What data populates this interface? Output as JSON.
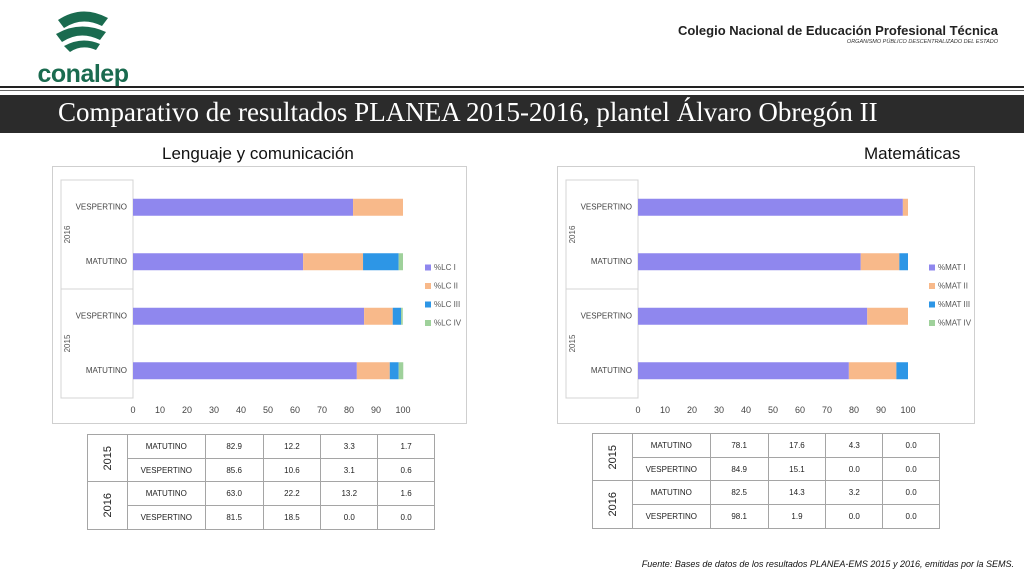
{
  "header": {
    "logo_text": "conalep",
    "institution_name": "Colegio Nacional de Educación Profesional Técnica",
    "institution_subtitle": "ORGANISMO PÚBLICO DESCENTRALIZADO DEL ESTADO",
    "title": "Comparativo de resultados PLANEA 2015-2016, plantel  Álvaro Obregón II"
  },
  "colors": {
    "level1": "#8f87ee",
    "level2": "#f8b98a",
    "level3": "#2d96e6",
    "level4": "#9fd19b",
    "title_bar": "#2b2b2b",
    "brand": "#1a6b4f"
  },
  "chart_data": [
    {
      "type": "bar",
      "orientation": "horizontal",
      "stacked": true,
      "title": "Lenguaje y comunicación",
      "groups": [
        "2016",
        "2016",
        "2015",
        "2015"
      ],
      "categories": [
        "VESPERTINO",
        "MATUTINO",
        "VESPERTINO",
        "MATUTINO"
      ],
      "series": [
        {
          "name": "%LC I",
          "values": [
            81.5,
            63.0,
            85.6,
            82.9
          ]
        },
        {
          "name": "%LC II",
          "values": [
            18.5,
            22.2,
            10.6,
            12.2
          ]
        },
        {
          "name": "%LC III",
          "values": [
            0.0,
            13.2,
            3.1,
            3.3
          ]
        },
        {
          "name": "%LC IV",
          "values": [
            0.0,
            1.6,
            0.6,
            1.7
          ]
        }
      ],
      "xlim": [
        0,
        100
      ],
      "x_ticks": [
        "0",
        "10",
        "20",
        "30",
        "40",
        "50",
        "60",
        "70",
        "80",
        "90",
        "100"
      ],
      "legend_position": "right",
      "grid": false
    },
    {
      "type": "bar",
      "orientation": "horizontal",
      "stacked": true,
      "title": "Matemáticas",
      "groups": [
        "2016",
        "2016",
        "2015",
        "2015"
      ],
      "categories": [
        "VESPERTINO",
        "MATUTINO",
        "VESPERTINO",
        "MATUTINO"
      ],
      "series": [
        {
          "name": "%MAT I",
          "values": [
            98.1,
            82.5,
            84.9,
            78.1
          ]
        },
        {
          "name": "%MAT II",
          "values": [
            1.9,
            14.3,
            15.1,
            17.6
          ]
        },
        {
          "name": "%MAT III",
          "values": [
            0.0,
            3.2,
            0.0,
            4.3
          ]
        },
        {
          "name": "%MAT IV",
          "values": [
            0.0,
            0.0,
            0.0,
            0.0
          ]
        }
      ],
      "xlim": [
        0,
        100
      ],
      "x_ticks": [
        "0",
        "10",
        "20",
        "30",
        "40",
        "50",
        "60",
        "70",
        "80",
        "90",
        "100"
      ],
      "legend_position": "right",
      "grid": false
    },
    {
      "type": "table",
      "title": "Lenguaje y comunicación",
      "rows": [
        {
          "year": "2015",
          "shift": "MATUTINO",
          "values": [
            "82.9",
            "12.2",
            "3.3",
            "1.7"
          ]
        },
        {
          "year": "2015",
          "shift": "VESPERTINO",
          "values": [
            "85.6",
            "10.6",
            "3.1",
            "0.6"
          ]
        },
        {
          "year": "2016",
          "shift": "MATUTINO",
          "values": [
            "63.0",
            "22.2",
            "13.2",
            "1.6"
          ]
        },
        {
          "year": "2016",
          "shift": "VESPERTINO",
          "values": [
            "81.5",
            "18.5",
            "0.0",
            "0.0"
          ]
        }
      ]
    },
    {
      "type": "table",
      "title": "Matemáticas",
      "rows": [
        {
          "year": "2015",
          "shift": "MATUTINO",
          "values": [
            "78.1",
            "17.6",
            "4.3",
            "0.0"
          ]
        },
        {
          "year": "2015",
          "shift": "VESPERTINO",
          "values": [
            "84.9",
            "15.1",
            "0.0",
            "0.0"
          ]
        },
        {
          "year": "2016",
          "shift": "MATUTINO",
          "values": [
            "82.5",
            "14.3",
            "3.2",
            "0.0"
          ]
        },
        {
          "year": "2016",
          "shift": "VESPERTINO",
          "values": [
            "98.1",
            "1.9",
            "0.0",
            "0.0"
          ]
        }
      ]
    }
  ],
  "tables": {
    "lc": {
      "y2015": "2015",
      "y2016": "2016",
      "r0": {
        "shift": "MATUTINO",
        "v": [
          "82.9",
          "12.2",
          "3.3",
          "1.7"
        ]
      },
      "r1": {
        "shift": "VESPERTINO",
        "v": [
          "85.6",
          "10.6",
          "3.1",
          "0.6"
        ]
      },
      "r2": {
        "shift": "MATUTINO",
        "v": [
          "63.0",
          "22.2",
          "13.2",
          "1.6"
        ]
      },
      "r3": {
        "shift": "VESPERTINO",
        "v": [
          "81.5",
          "18.5",
          "0.0",
          "0.0"
        ]
      }
    },
    "mat": {
      "y2015": "2015",
      "y2016": "2016",
      "r0": {
        "shift": "MATUTINO",
        "v": [
          "78.1",
          "17.6",
          "4.3",
          "0.0"
        ]
      },
      "r1": {
        "shift": "VESPERTINO",
        "v": [
          "84.9",
          "15.1",
          "0.0",
          "0.0"
        ]
      },
      "r2": {
        "shift": "MATUTINO",
        "v": [
          "82.5",
          "14.3",
          "3.2",
          "0.0"
        ]
      },
      "r3": {
        "shift": "VESPERTINO",
        "v": [
          "98.1",
          "1.9",
          "0.0",
          "0.0"
        ]
      }
    }
  },
  "footer": "Fuente: Bases de datos de los resultados PLANEA-EMS 2015 y 2016, emitidas por la SEMS."
}
